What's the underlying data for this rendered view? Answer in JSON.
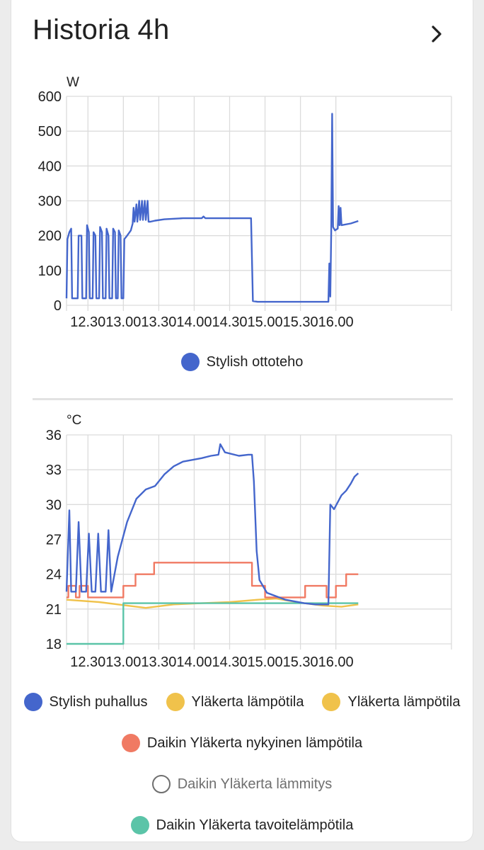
{
  "header": {
    "title": "Historia 4h",
    "more_icon": "chevron-right-icon"
  },
  "colors": {
    "blue": "#4466cc",
    "yellow": "#f0c24b",
    "red": "#f07a63",
    "teal": "#5bc4a8",
    "grid": "#dcdcdc"
  },
  "chart_data": [
    {
      "type": "line",
      "unit": "W",
      "x_ticks": [
        "12.30",
        "13.00",
        "13.30",
        "14.00",
        "14.30",
        "15.00",
        "15.30",
        "16.00"
      ],
      "y_ticks": [
        "600",
        "500",
        "400",
        "300",
        "200",
        "100",
        "0"
      ],
      "ylim": [
        0,
        600
      ],
      "xlim_hours": [
        12.05,
        16.18
      ],
      "grid": true,
      "legend_position": "bottom",
      "series": [
        {
          "name": "Stylish ottoteho",
          "color": "#4466cc",
          "visible": true,
          "points": [
            [
              12.05,
              20
            ],
            [
              12.06,
              190
            ],
            [
              12.08,
              210
            ],
            [
              12.1,
              220
            ],
            [
              12.11,
              20
            ],
            [
              12.17,
              20
            ],
            [
              12.18,
              200
            ],
            [
              12.21,
              200
            ],
            [
              12.22,
              20
            ],
            [
              12.26,
              20
            ],
            [
              12.27,
              230
            ],
            [
              12.29,
              210
            ],
            [
              12.3,
              20
            ],
            [
              12.33,
              20
            ],
            [
              12.34,
              210
            ],
            [
              12.36,
              200
            ],
            [
              12.37,
              20
            ],
            [
              12.4,
              20
            ],
            [
              12.41,
              225
            ],
            [
              12.43,
              210
            ],
            [
              12.44,
              20
            ],
            [
              12.47,
              20
            ],
            [
              12.48,
              220
            ],
            [
              12.5,
              200
            ],
            [
              12.51,
              20
            ],
            [
              12.54,
              20
            ],
            [
              12.55,
              220
            ],
            [
              12.57,
              210
            ],
            [
              12.58,
              20
            ],
            [
              12.6,
              20
            ],
            [
              12.61,
              215
            ],
            [
              12.63,
              200
            ],
            [
              12.64,
              20
            ],
            [
              12.66,
              20
            ],
            [
              12.67,
              190
            ],
            [
              12.7,
              200
            ],
            [
              12.74,
              215
            ],
            [
              12.76,
              235
            ],
            [
              12.77,
              280
            ],
            [
              12.78,
              240
            ],
            [
              12.8,
              290
            ],
            [
              12.81,
              240
            ],
            [
              12.83,
              300
            ],
            [
              12.84,
              245
            ],
            [
              12.86,
              300
            ],
            [
              12.87,
              245
            ],
            [
              12.89,
              300
            ],
            [
              12.9,
              245
            ],
            [
              12.92,
              300
            ],
            [
              12.93,
              240
            ],
            [
              12.95,
              240
            ],
            [
              13.0,
              243
            ],
            [
              13.1,
              247
            ],
            [
              13.3,
              250
            ],
            [
              13.5,
              250
            ],
            [
              13.52,
              255
            ],
            [
              13.54,
              250
            ],
            [
              13.7,
              250
            ],
            [
              14.0,
              250
            ],
            [
              14.03,
              250
            ],
            [
              14.05,
              12
            ],
            [
              14.1,
              10
            ],
            [
              14.5,
              10
            ],
            [
              14.86,
              10
            ],
            [
              14.87,
              120
            ],
            [
              14.88,
              25
            ],
            [
              14.89,
              210
            ],
            [
              14.9,
              550
            ],
            [
              14.91,
              225
            ],
            [
              14.93,
              215
            ],
            [
              14.96,
              220
            ],
            [
              14.97,
              285
            ],
            [
              14.98,
              230
            ],
            [
              14.99,
              280
            ],
            [
              15.0,
              230
            ],
            [
              15.1,
              235
            ],
            [
              15.18,
              242
            ]
          ]
        }
      ]
    },
    {
      "type": "line",
      "unit": "°C",
      "x_ticks": [
        "12.30",
        "13.00",
        "13.30",
        "14.00",
        "14.30",
        "15.00",
        "15.30",
        "16.00"
      ],
      "y_ticks": [
        "36",
        "33",
        "30",
        "27",
        "24",
        "21",
        "18"
      ],
      "ylim": [
        18,
        36
      ],
      "xlim_hours": [
        12.05,
        16.18
      ],
      "grid": true,
      "legend_position": "bottom",
      "series": [
        {
          "name": "Stylish puhallus",
          "color": "#4466cc",
          "visible": true,
          "points": [
            [
              12.05,
              22.5
            ],
            [
              12.08,
              29.5
            ],
            [
              12.1,
              22.5
            ],
            [
              12.15,
              22.5
            ],
            [
              12.18,
              28.5
            ],
            [
              12.21,
              22.5
            ],
            [
              12.26,
              22.5
            ],
            [
              12.29,
              27.5
            ],
            [
              12.32,
              22.5
            ],
            [
              12.36,
              22.5
            ],
            [
              12.39,
              27.5
            ],
            [
              12.42,
              22.5
            ],
            [
              12.47,
              22.5
            ],
            [
              12.5,
              27.8
            ],
            [
              12.53,
              22.5
            ],
            [
              12.6,
              25.5
            ],
            [
              12.7,
              28.5
            ],
            [
              12.8,
              30.5
            ],
            [
              12.9,
              31.3
            ],
            [
              13.0,
              31.6
            ],
            [
              13.1,
              32.6
            ],
            [
              13.2,
              33.3
            ],
            [
              13.3,
              33.7
            ],
            [
              13.5,
              34.0
            ],
            [
              13.6,
              34.2
            ],
            [
              13.68,
              34.3
            ],
            [
              13.7,
              35.2
            ],
            [
              13.75,
              34.5
            ],
            [
              13.9,
              34.2
            ],
            [
              14.0,
              34.3
            ],
            [
              14.04,
              34.3
            ],
            [
              14.06,
              32.0
            ],
            [
              14.09,
              26.0
            ],
            [
              14.12,
              23.5
            ],
            [
              14.2,
              22.4
            ],
            [
              14.4,
              21.8
            ],
            [
              14.6,
              21.5
            ],
            [
              14.72,
              21.4
            ],
            [
              14.86,
              21.4
            ],
            [
              14.88,
              30.0
            ],
            [
              14.92,
              29.6
            ],
            [
              14.96,
              30.2
            ],
            [
              15.0,
              30.8
            ],
            [
              15.05,
              31.2
            ],
            [
              15.1,
              31.8
            ],
            [
              15.14,
              32.4
            ],
            [
              15.18,
              32.7
            ]
          ]
        },
        {
          "name": "Yläkerta lämpötila",
          "color": "#f0c24b",
          "visible": true,
          "points": [
            [
              12.05,
              21.8
            ],
            [
              12.4,
              21.6
            ],
            [
              12.7,
              21.3
            ],
            [
              12.9,
              21.1
            ],
            [
              13.2,
              21.4
            ],
            [
              13.5,
              21.5
            ],
            [
              13.8,
              21.6
            ],
            [
              14.1,
              21.8
            ],
            [
              14.3,
              21.9
            ],
            [
              14.45,
              21.7
            ],
            [
              14.6,
              21.5
            ],
            [
              14.8,
              21.3
            ],
            [
              15.0,
              21.2
            ],
            [
              15.18,
              21.4
            ]
          ]
        },
        {
          "name": "Daikin Yläkerta nykyinen lämpötila",
          "color": "#f07a63",
          "visible": true,
          "points": [
            [
              12.05,
              22.0
            ],
            [
              12.07,
              22.0
            ],
            [
              12.07,
              23.0
            ],
            [
              12.15,
              23.0
            ],
            [
              12.15,
              22.0
            ],
            [
              12.19,
              22.0
            ],
            [
              12.19,
              23.0
            ],
            [
              12.28,
              23.0
            ],
            [
              12.28,
              22.0
            ],
            [
              12.66,
              22.0
            ],
            [
              12.66,
              23.0
            ],
            [
              12.79,
              23.0
            ],
            [
              12.79,
              24.0
            ],
            [
              12.99,
              24.0
            ],
            [
              12.99,
              25.0
            ],
            [
              14.04,
              25.0
            ],
            [
              14.04,
              23.0
            ],
            [
              14.18,
              23.0
            ],
            [
              14.18,
              22.0
            ],
            [
              14.61,
              22.0
            ],
            [
              14.61,
              23.0
            ],
            [
              14.84,
              23.0
            ],
            [
              14.84,
              22.0
            ],
            [
              14.94,
              22.0
            ],
            [
              14.94,
              23.0
            ],
            [
              15.05,
              23.0
            ],
            [
              15.05,
              24.0
            ],
            [
              15.18,
              24.0
            ]
          ]
        },
        {
          "name": "Daikin Yläkerta lämmitys",
          "color": "#ffffff",
          "visible": false,
          "points": []
        },
        {
          "name": "Daikin Yläkerta tavoitelämpötila",
          "color": "#5bc4a8",
          "visible": true,
          "points": [
            [
              12.05,
              18.0
            ],
            [
              12.66,
              18.0
            ],
            [
              12.66,
              21.5
            ],
            [
              13.7,
              21.5
            ],
            [
              13.95,
              21.5
            ],
            [
              14.6,
              21.5
            ],
            [
              15.18,
              21.5
            ]
          ]
        }
      ]
    }
  ],
  "legend_rows": [
    [
      0,
      0
    ],
    [
      1,
      0,
      1,
      1
    ],
    [
      1,
      2
    ],
    [
      1,
      3
    ],
    [
      1,
      4
    ]
  ]
}
